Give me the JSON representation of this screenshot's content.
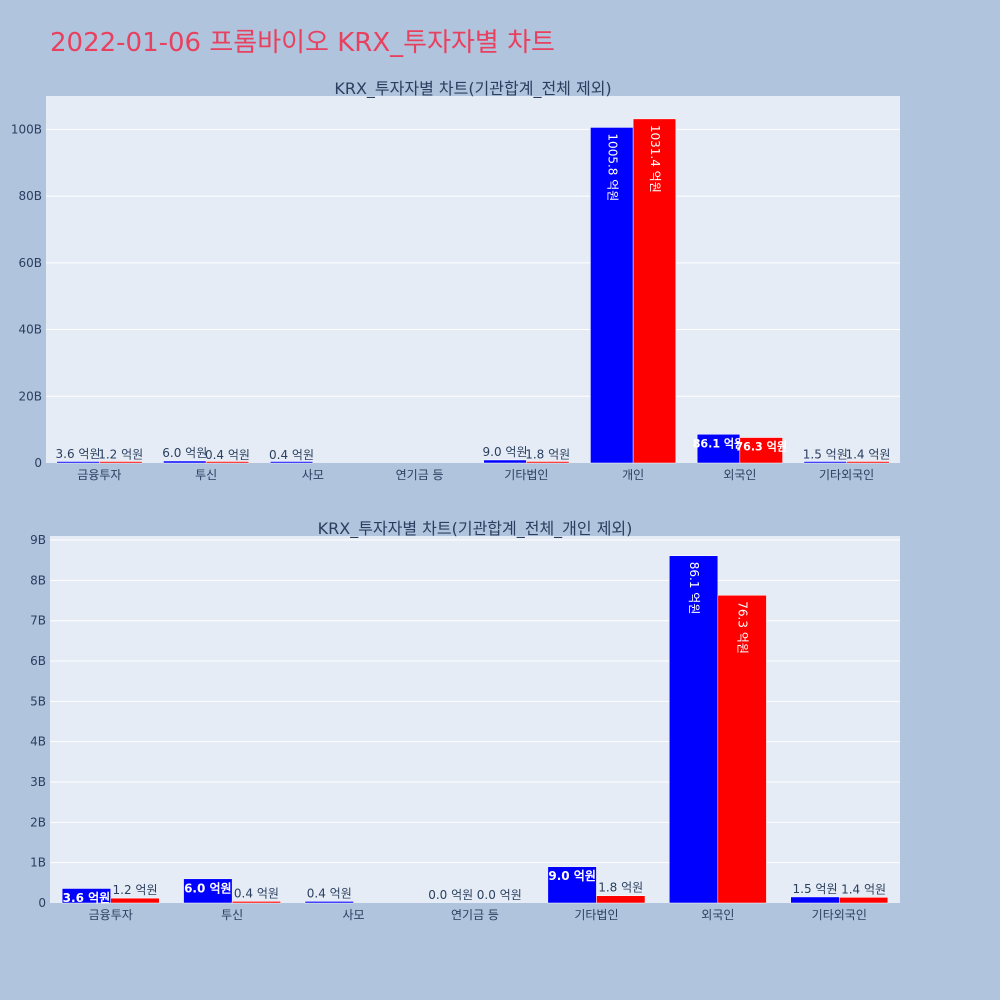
{
  "title": "2022-01-06 프롬바이오 KRX_투자자별 차트",
  "colors": {
    "buy": "#0000ff",
    "sell": "#ff0000",
    "title": "#e8415f",
    "plot_bg": "#e5ecf6",
    "page_bg": "#b0c4de"
  },
  "chart_data": [
    {
      "type": "bar",
      "title": "KRX_투자자별 차트(기관합계_전체 제외)",
      "categories": [
        "금융투자",
        "투신",
        "사모",
        "연기금 등",
        "기타법인",
        "개인",
        "외국인",
        "기타외국인"
      ],
      "series": [
        {
          "values": [
            0.36,
            0.6,
            0.04,
            null,
            0.9,
            100.58,
            8.61,
            0.15
          ],
          "labels": [
            "3.6 억원",
            "6.0 억원",
            "0.4 억원",
            "",
            "9.0 억원",
            "1005.8 억원",
            "86.1 억원",
            "1.5 억원"
          ]
        },
        {
          "values": [
            0.12,
            0.04,
            null,
            null,
            0.18,
            103.14,
            7.63,
            0.14
          ],
          "labels": [
            "1.2 억원",
            "0.4 억원",
            "",
            "",
            "1.8 억원",
            "1031.4 억원",
            "76.3 억원",
            "1.4 억원"
          ]
        }
      ],
      "yticks": [
        "0",
        "20B",
        "40B",
        "60B",
        "80B",
        "100B"
      ],
      "ylim": [
        0,
        110
      ],
      "grid": true,
      "legend": "none"
    },
    {
      "type": "bar",
      "title": "KRX_투자자별 차트(기관합계_전체_개인 제외)",
      "categories": [
        "금융투자",
        "투신",
        "사모",
        "연기금 등",
        "기타법인",
        "외국인",
        "기타외국인"
      ],
      "series": [
        {
          "values": [
            0.36,
            0.6,
            0.04,
            0.0,
            0.9,
            8.61,
            0.15
          ],
          "labels": [
            "3.6 억원",
            "6.0 억원",
            "0.4 억원",
            "0.0 억원",
            "9.0 억원",
            "86.1 억원",
            "1.5 억원"
          ]
        },
        {
          "values": [
            0.12,
            0.04,
            null,
            0.0,
            0.18,
            7.63,
            0.14
          ],
          "labels": [
            "1.2 억원",
            "0.4 억원",
            "",
            "0.0 억원",
            "1.8 억원",
            "76.3 억원",
            "1.4 억원"
          ]
        }
      ],
      "yticks": [
        "0",
        "1B",
        "2B",
        "3B",
        "4B",
        "5B",
        "6B",
        "7B",
        "8B",
        "9B"
      ],
      "ylim": [
        0,
        9.1
      ],
      "grid": true,
      "legend": "none"
    }
  ]
}
